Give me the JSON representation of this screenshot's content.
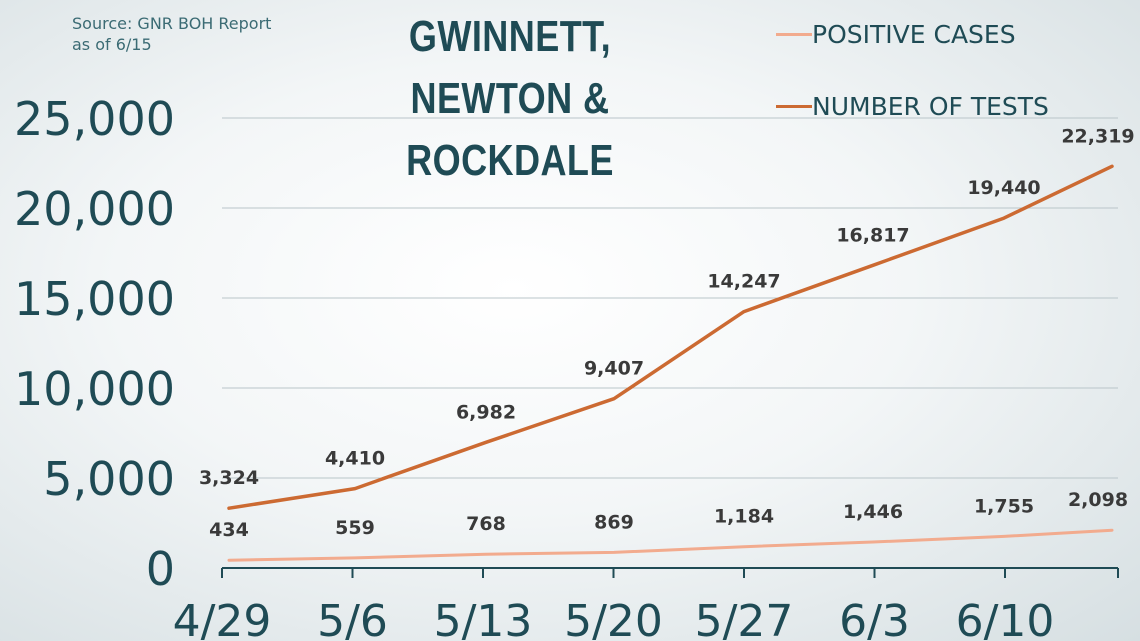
{
  "source": {
    "line1": "Source: GNR BOH Report",
    "line2": "as of 6/15"
  },
  "title": {
    "line1": "GWINNETT, NEWTON &",
    "line2": "ROCKDALE"
  },
  "legend": [
    {
      "label": "POSITIVE CASES",
      "color": "#f2ab8e"
    },
    {
      "label": "NUMBER OF TESTS",
      "color": "#cc6a32"
    }
  ],
  "chart_data": {
    "type": "line",
    "title": "GWINNETT, NEWTON & ROCKDALE",
    "xlabel": "",
    "ylabel": "",
    "x_ticks": [
      "4/29",
      "5/6",
      "5/13",
      "5/20",
      "5/27",
      "6/3",
      "6/10"
    ],
    "y_ticks": [
      "0",
      "5,000",
      "10,000",
      "15,000",
      "20,000",
      "25,000"
    ],
    "ylim": [
      0,
      25000
    ],
    "grid": true,
    "legend_position": "top-right",
    "series": [
      {
        "name": "POSITIVE CASES",
        "color": "#f2ab8e",
        "x": [
          "4/29",
          "5/6",
          "5/13",
          "5/20",
          "5/27",
          "6/3",
          "6/10",
          "6/15"
        ],
        "values": [
          434,
          559,
          768,
          869,
          1184,
          1446,
          1755,
          2098
        ],
        "labels": [
          "434",
          "559",
          "768",
          "869",
          "1,184",
          "1,446",
          "1,755",
          "2,098"
        ]
      },
      {
        "name": "NUMBER OF TESTS",
        "color": "#cc6a32",
        "x": [
          "4/29",
          "5/6",
          "5/13",
          "5/20",
          "5/27",
          "6/3",
          "6/10",
          "6/15"
        ],
        "values": [
          3324,
          4410,
          6982,
          9407,
          14247,
          16817,
          19440,
          22319
        ],
        "labels": [
          "3,324",
          "4,410",
          "6,982",
          "9,407",
          "14,247",
          "16,817",
          "19,440",
          "22,319"
        ]
      }
    ]
  }
}
